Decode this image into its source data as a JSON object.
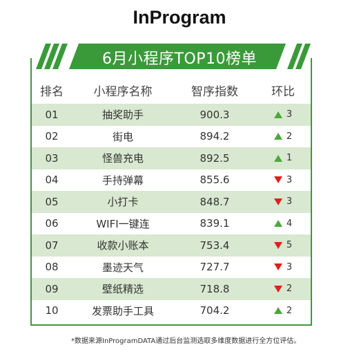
{
  "brand": "InProgram",
  "chart_data": {
    "type": "table",
    "title": "6月小程序TOP10榜单",
    "columns": [
      "排名",
      "小程序名称",
      "智序指数",
      "环比"
    ],
    "rows": [
      {
        "rank": "01",
        "name": "抽奖助手",
        "score": "900.3",
        "direction": "up",
        "change": "3"
      },
      {
        "rank": "02",
        "name": "街电",
        "score": "894.2",
        "direction": "up",
        "change": "2"
      },
      {
        "rank": "03",
        "name": "怪兽充电",
        "score": "892.5",
        "direction": "up",
        "change": "1"
      },
      {
        "rank": "04",
        "name": "手持弹幕",
        "score": "855.6",
        "direction": "down",
        "change": "3"
      },
      {
        "rank": "05",
        "name": "小打卡",
        "score": "848.7",
        "direction": "down",
        "change": "3"
      },
      {
        "rank": "06",
        "name": "WIFI一键连",
        "score": "839.1",
        "direction": "up",
        "change": "4"
      },
      {
        "rank": "07",
        "name": "收款小账本",
        "score": "753.4",
        "direction": "down",
        "change": "5"
      },
      {
        "rank": "08",
        "name": "墨迹天气",
        "score": "727.7",
        "direction": "down",
        "change": "3"
      },
      {
        "rank": "09",
        "name": "壁纸精选",
        "score": "718.8",
        "direction": "down",
        "change": "2"
      },
      {
        "rank": "10",
        "name": "发票助手工具",
        "score": "704.2",
        "direction": "up",
        "change": "2"
      }
    ]
  },
  "footnote": "*数据来源InProgramDATA通过后台监测选取多维度数据进行全方位评估。",
  "colors": {
    "accent": "#3a9a3a",
    "row_shade": "#d9e8d0",
    "up": "#4aa83a",
    "down": "#e0201c"
  }
}
